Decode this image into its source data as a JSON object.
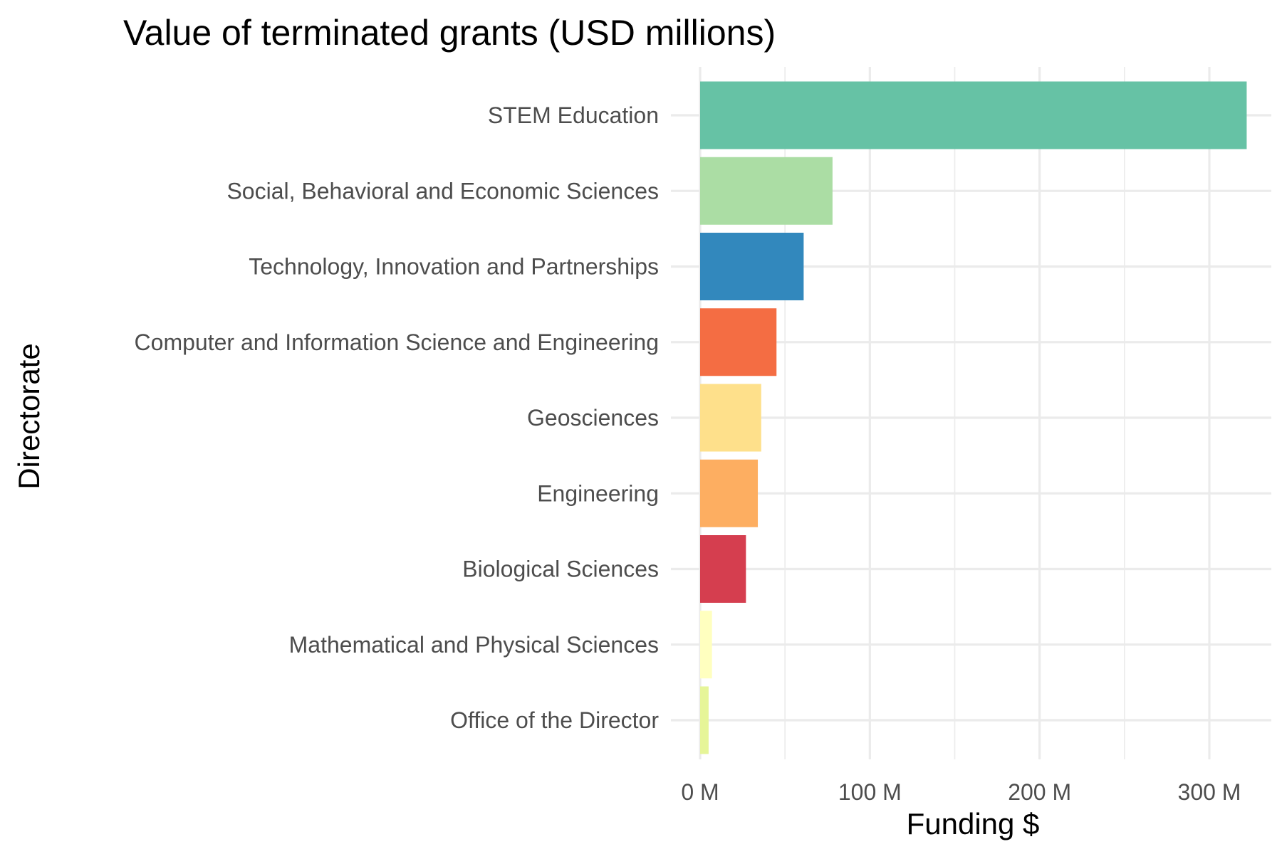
{
  "chart_data": {
    "type": "bar",
    "orientation": "horizontal",
    "title": "Value of terminated grants (USD millions)",
    "xlabel": "Funding $",
    "ylabel": "Directorate",
    "categories": [
      "STEM Education",
      "Social, Behavioral and Economic Sciences",
      "Technology, Innovation and Partnerships",
      "Computer and Information Science and Engineering",
      "Geosciences",
      "Engineering",
      "Biological Sciences",
      "Mathematical and Physical Sciences",
      "Office of the Director"
    ],
    "values": [
      322,
      78,
      61,
      45,
      36,
      34,
      27,
      7,
      5
    ],
    "colors": [
      "#66c2a5",
      "#abdda4",
      "#3288bd",
      "#f46d43",
      "#fee08b",
      "#fdae61",
      "#d53e4f",
      "#ffffbf",
      "#e6f598"
    ],
    "xlim": [
      0,
      338
    ],
    "x_ticks": [
      0,
      100,
      200,
      300
    ],
    "x_tick_labels": [
      "0 M",
      "100 M",
      "200 M",
      "300 M"
    ],
    "grid": true,
    "legend": "none"
  }
}
